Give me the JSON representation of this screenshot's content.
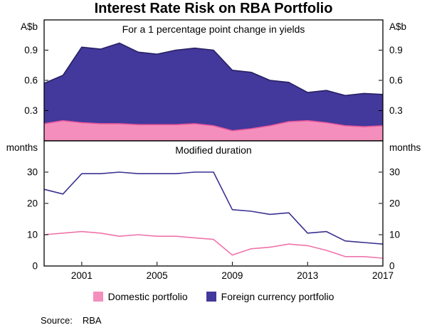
{
  "title": "Interest Rate Risk on RBA Portfolio",
  "legend": {
    "items": [
      {
        "label": "Domestic portfolio",
        "color": "#f48fbd"
      },
      {
        "label": "Foreign currency portfolio",
        "color": "#43389b"
      }
    ]
  },
  "source": {
    "label": "Source:",
    "value": "RBA"
  },
  "chart_data": [
    {
      "type": "area",
      "stacked": true,
      "title": "For a 1 percentage point change in yields",
      "unit_left": "A$b",
      "unit_right": "A$b",
      "x": [
        1999,
        2000,
        2001,
        2002,
        2003,
        2004,
        2005,
        2006,
        2007,
        2008,
        2009,
        2010,
        2011,
        2012,
        2013,
        2014,
        2015,
        2016,
        2017
      ],
      "ylim": [
        0,
        1.2
      ],
      "yticks": [
        0.3,
        0.6,
        0.9
      ],
      "series": [
        {
          "name": "Domestic portfolio",
          "color": "#f48fbd",
          "edge_color": "#e8579b",
          "values": [
            0.17,
            0.2,
            0.18,
            0.17,
            0.17,
            0.16,
            0.16,
            0.16,
            0.17,
            0.15,
            0.1,
            0.12,
            0.15,
            0.19,
            0.2,
            0.18,
            0.15,
            0.14,
            0.15
          ]
        },
        {
          "name": "Foreign currency portfolio",
          "color": "#43389b",
          "edge_color": "#262063",
          "values": [
            0.4,
            0.45,
            0.75,
            0.74,
            0.8,
            0.72,
            0.7,
            0.74,
            0.75,
            0.75,
            0.6,
            0.56,
            0.45,
            0.39,
            0.28,
            0.32,
            0.3,
            0.33,
            0.31
          ]
        }
      ]
    },
    {
      "type": "line",
      "title": "Modified duration",
      "unit_left": "months",
      "unit_right": "months",
      "x": [
        1999,
        2000,
        2001,
        2002,
        2003,
        2004,
        2005,
        2006,
        2007,
        2008,
        2009,
        2010,
        2011,
        2012,
        2013,
        2014,
        2015,
        2016,
        2017
      ],
      "ylim": [
        0,
        40
      ],
      "yticks": [
        0,
        10,
        20,
        30
      ],
      "xticks": [
        2001,
        2005,
        2009,
        2013,
        2017
      ],
      "series": [
        {
          "name": "Domestic portfolio",
          "color": "#ef74ab",
          "values": [
            10,
            10.5,
            11,
            10.5,
            9.5,
            10,
            9.5,
            9.5,
            9,
            8.5,
            3.5,
            5.5,
            6,
            7,
            6.5,
            5,
            3,
            3,
            2.5
          ]
        },
        {
          "name": "Foreign currency portfolio",
          "color": "#3a3191",
          "values": [
            24.5,
            23,
            29.5,
            29.5,
            30,
            29.5,
            29.5,
            29.5,
            30,
            30,
            18,
            17.5,
            16.5,
            17,
            10.5,
            11,
            8,
            7.5,
            7
          ]
        }
      ]
    }
  ]
}
